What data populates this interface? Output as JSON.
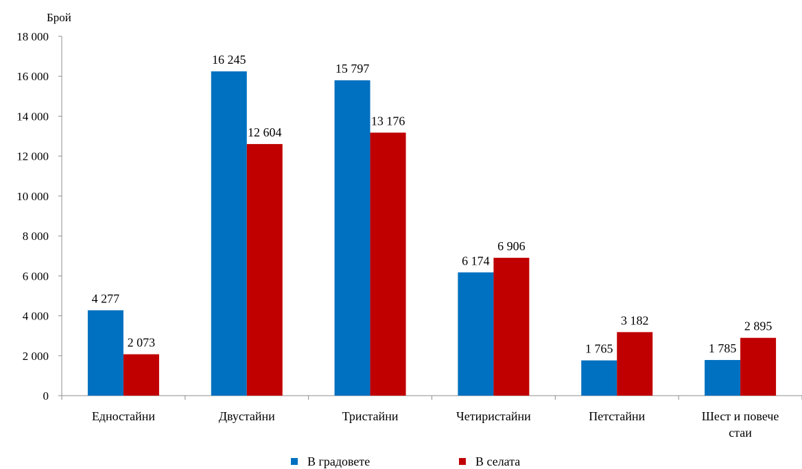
{
  "chart_data": {
    "type": "bar",
    "ylabel": "Брой",
    "ylim": [
      0,
      18000
    ],
    "yticks": [
      0,
      2000,
      4000,
      6000,
      8000,
      10000,
      12000,
      14000,
      16000,
      18000
    ],
    "ytick_labels": [
      "0",
      "2 000",
      "4 000",
      "6 000",
      "8 000",
      "10 000",
      "12 000",
      "14 000",
      "16 000",
      "18 000"
    ],
    "grid": false,
    "legend_position": "bottom",
    "categories": [
      [
        "Едностайни"
      ],
      [
        "Двустайни"
      ],
      [
        "Тристайни"
      ],
      [
        "Четиристайни"
      ],
      [
        "Петстайни"
      ],
      [
        "Шест и повече",
        "стаи"
      ]
    ],
    "series": [
      {
        "name": "В градовете",
        "color": "#0070C0",
        "values": [
          4277,
          16245,
          15797,
          6174,
          1765,
          1785
        ],
        "labels": [
          "4 277",
          "16 245",
          "15 797",
          "6 174",
          "1 765",
          "1 785"
        ]
      },
      {
        "name": "В селата",
        "color": "#C00000",
        "values": [
          2073,
          12604,
          13176,
          6906,
          3182,
          2895
        ],
        "labels": [
          "2 073",
          "12 604",
          "13 176",
          "6 906",
          "3 182",
          "2 895"
        ]
      }
    ]
  }
}
